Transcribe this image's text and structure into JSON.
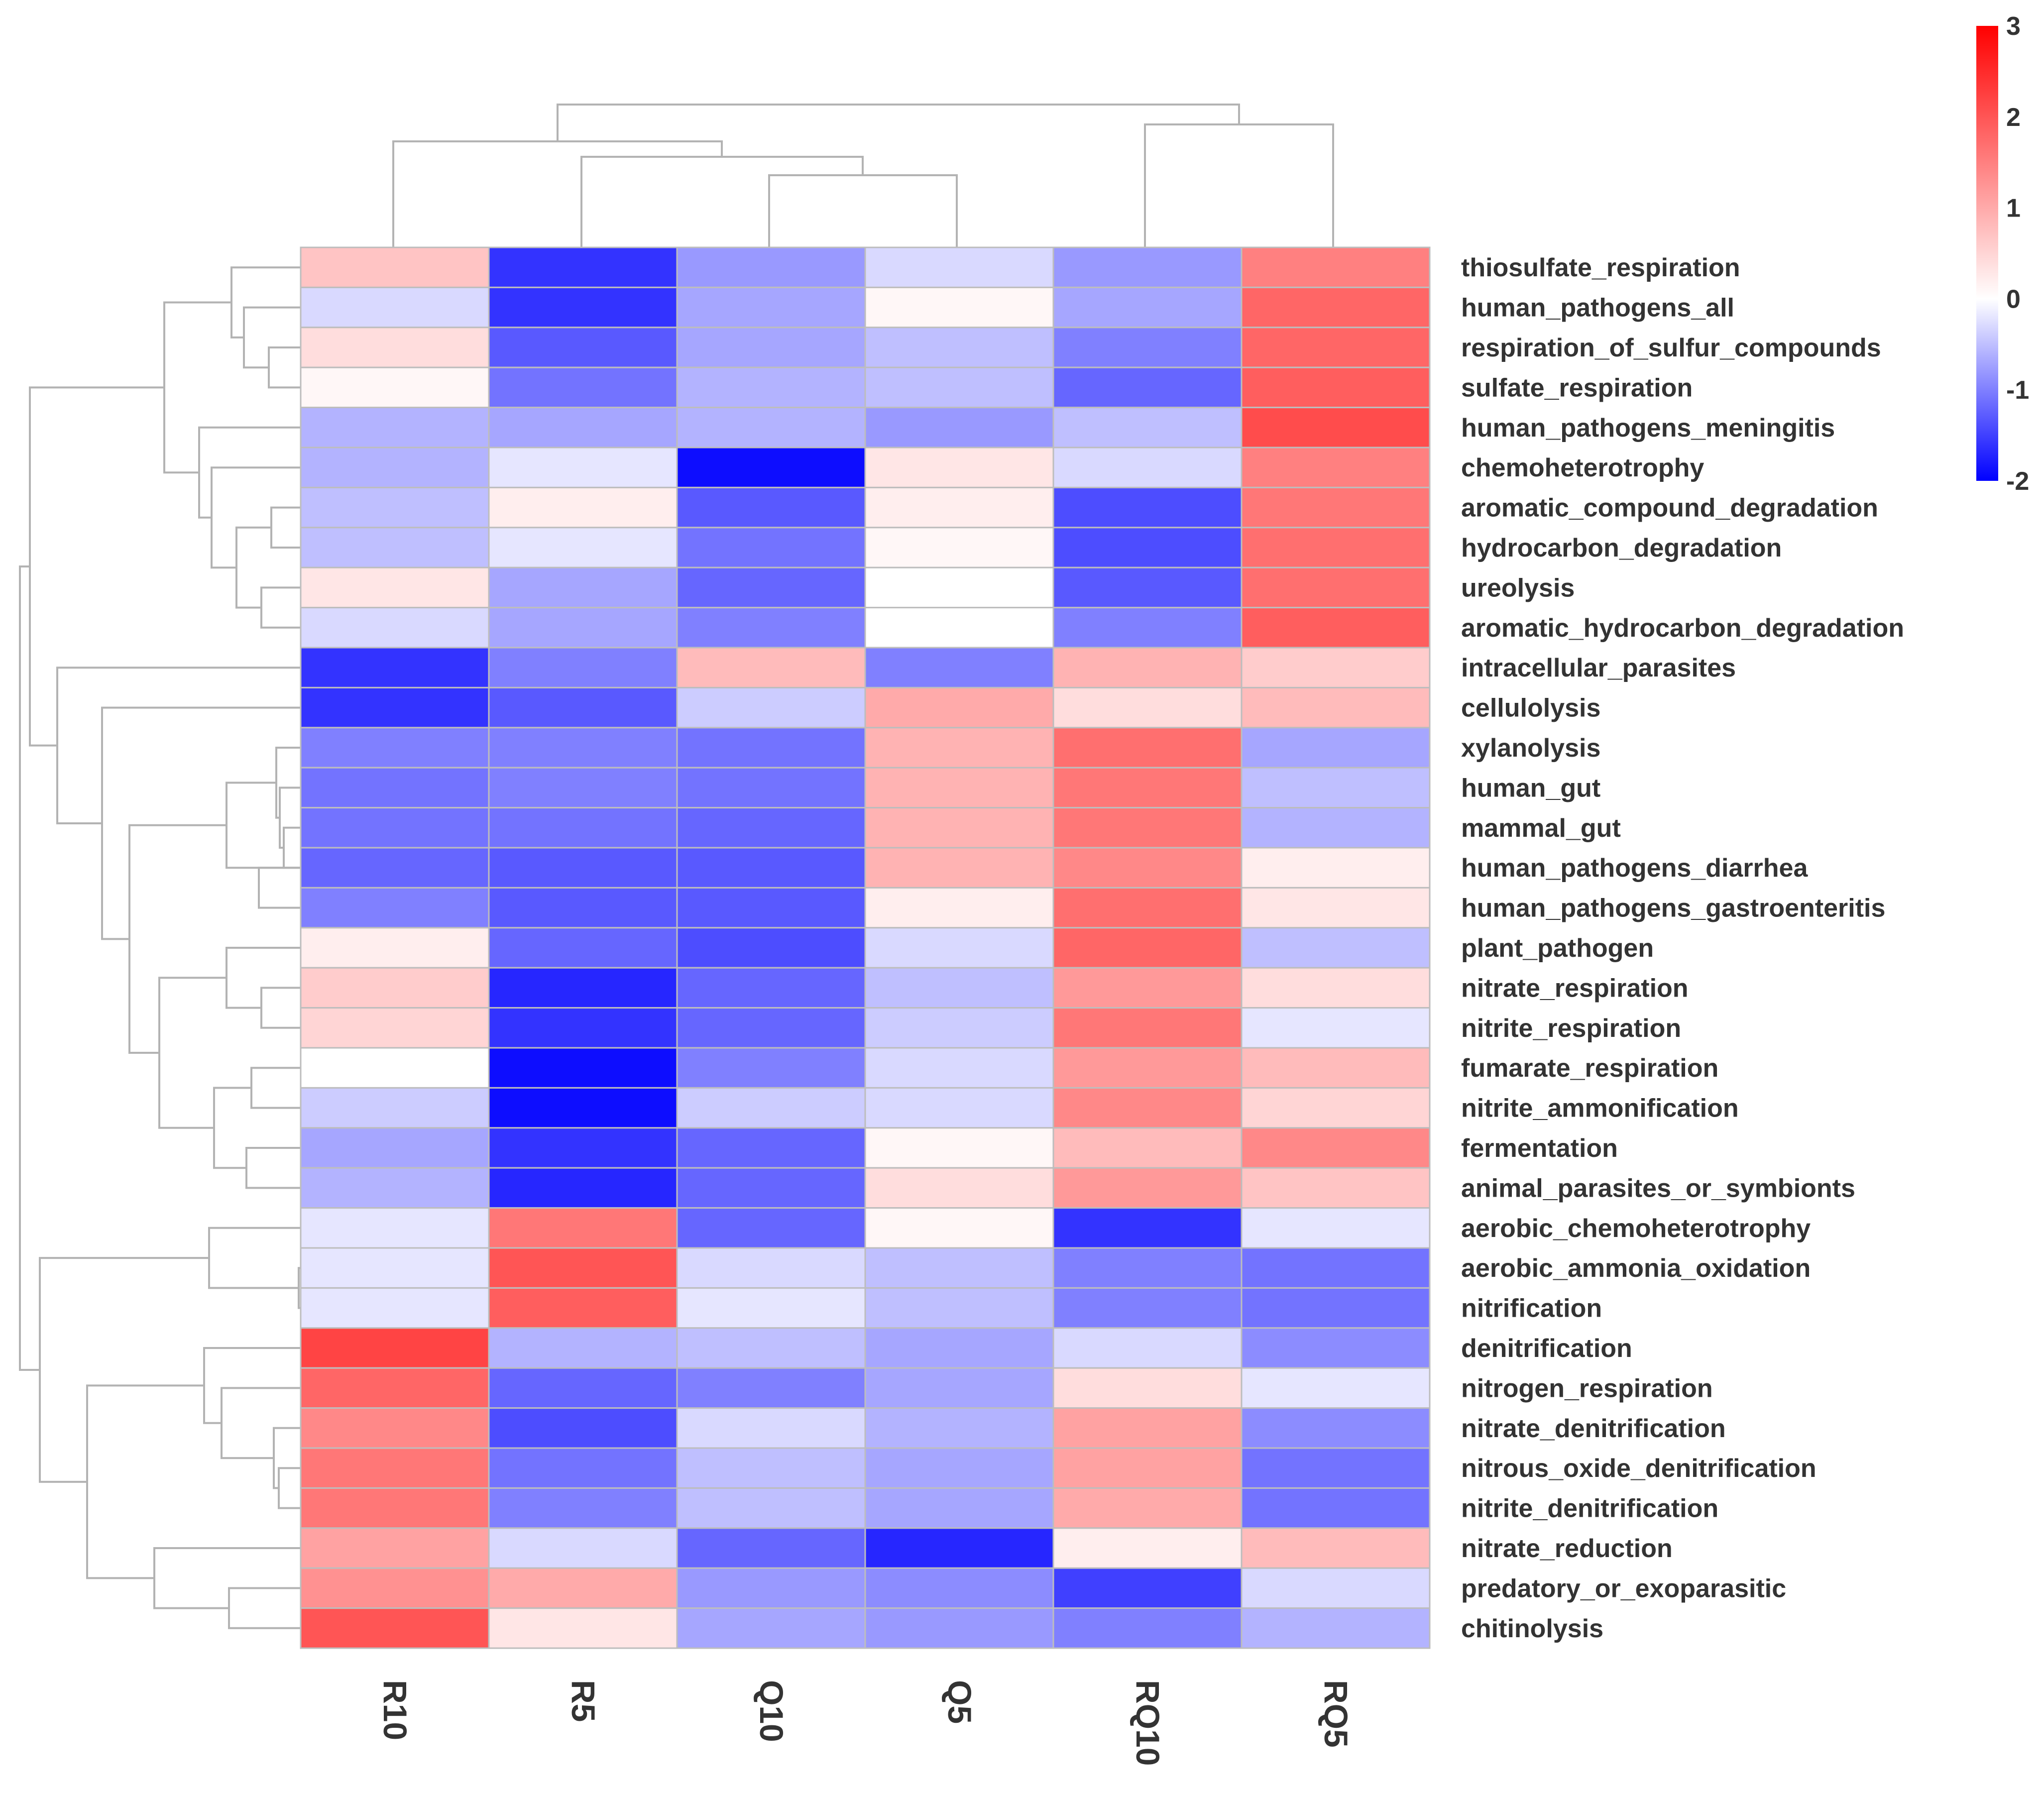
{
  "chart_data": {
    "type": "heatmap",
    "title": "",
    "columns": [
      "R10",
      "R5",
      "Q10",
      "Q5",
      "RQ10",
      "RQ5"
    ],
    "rows": [
      "thiosulfate_respiration",
      "human_pathogens_all",
      "respiration_of_sulfur_compounds",
      "sulfate_respiration",
      "human_pathogens_meningitis",
      "chemoheterotrophy",
      "aromatic_compound_degradation",
      "hydrocarbon_degradation",
      "ureolysis",
      "aromatic_hydrocarbon_degradation",
      "intracellular_parasites",
      "cellulolysis",
      "xylanolysis",
      "human_gut",
      "mammal_gut",
      "human_pathogens_diarrhea",
      "human_pathogens_gastroenteritis",
      "plant_pathogen",
      "nitrate_respiration",
      "nitrite_respiration",
      "fumarate_respiration",
      "nitrite_ammonification",
      "fermentation",
      "animal_parasites_or_symbionts",
      "aerobic_chemoheterotrophy",
      "aerobic_ammonia_oxidation",
      "nitrification",
      "denitrification",
      "nitrogen_respiration",
      "nitrate_denitrification",
      "nitrous_oxide_denitrification",
      "nitrite_denitrification",
      "nitrate_reduction",
      "predatory_or_exoparasitic",
      "chitinolysis"
    ],
    "values": [
      [
        0.7,
        -1.6,
        -0.8,
        -0.3,
        -0.8,
        1.5
      ],
      [
        -0.3,
        -1.6,
        -0.7,
        0.1,
        -0.7,
        1.8
      ],
      [
        0.4,
        -1.3,
        -0.7,
        -0.5,
        -1.0,
        1.8
      ],
      [
        0.1,
        -1.1,
        -0.6,
        -0.5,
        -1.2,
        1.9
      ],
      [
        -0.6,
        -0.7,
        -0.6,
        -0.8,
        -0.5,
        2.1
      ],
      [
        -0.6,
        -0.2,
        -1.9,
        0.3,
        -0.3,
        1.5
      ],
      [
        -0.5,
        0.2,
        -1.3,
        0.2,
        -1.4,
        1.6
      ],
      [
        -0.5,
        -0.2,
        -1.1,
        0.1,
        -1.4,
        1.7
      ],
      [
        0.3,
        -0.7,
        -1.2,
        0.0,
        -1.3,
        1.7
      ],
      [
        -0.3,
        -0.7,
        -1.0,
        0.0,
        -1.0,
        1.9
      ],
      [
        -1.6,
        -1.0,
        0.8,
        -1.0,
        0.9,
        0.6
      ],
      [
        -1.6,
        -1.3,
        -0.4,
        1.0,
        0.4,
        0.8
      ],
      [
        -1.0,
        -1.0,
        -1.1,
        0.9,
        1.7,
        -0.7
      ],
      [
        -1.1,
        -1.0,
        -1.1,
        0.9,
        1.6,
        -0.5
      ],
      [
        -1.1,
        -1.1,
        -1.2,
        0.9,
        1.6,
        -0.6
      ],
      [
        -1.2,
        -1.3,
        -1.3,
        0.9,
        1.4,
        0.2
      ],
      [
        -1.0,
        -1.3,
        -1.3,
        0.2,
        1.7,
        0.3
      ],
      [
        0.2,
        -1.2,
        -1.4,
        -0.3,
        1.8,
        -0.5
      ],
      [
        0.6,
        -1.7,
        -1.2,
        -0.5,
        1.2,
        0.4
      ],
      [
        0.5,
        -1.6,
        -1.2,
        -0.4,
        1.6,
        -0.2
      ],
      [
        0.0,
        -1.9,
        -1.0,
        -0.3,
        1.2,
        0.8
      ],
      [
        -0.4,
        -1.9,
        -0.4,
        -0.3,
        1.4,
        0.5
      ],
      [
        -0.7,
        -1.6,
        -1.2,
        0.1,
        0.8,
        1.4
      ],
      [
        -0.6,
        -1.7,
        -1.2,
        0.4,
        1.2,
        0.7
      ],
      [
        -0.2,
        1.6,
        -1.2,
        0.1,
        -1.6,
        -0.2
      ],
      [
        -0.2,
        2.0,
        -0.3,
        -0.5,
        -1.0,
        -1.1
      ],
      [
        -0.2,
        1.9,
        -0.2,
        -0.5,
        -1.0,
        -1.1
      ],
      [
        2.2,
        -0.6,
        -0.5,
        -0.7,
        -0.3,
        -0.9
      ],
      [
        1.8,
        -1.2,
        -1.0,
        -0.7,
        0.4,
        -0.2
      ],
      [
        1.4,
        -1.4,
        -0.3,
        -0.6,
        1.1,
        -0.9
      ],
      [
        1.6,
        -1.1,
        -0.5,
        -0.7,
        1.1,
        -1.1
      ],
      [
        1.6,
        -1.0,
        -0.5,
        -0.7,
        1.0,
        -1.1
      ],
      [
        1.1,
        -0.3,
        -1.2,
        -1.7,
        0.2,
        0.8
      ],
      [
        1.3,
        1.0,
        -0.8,
        -0.9,
        -1.5,
        -0.3
      ],
      [
        2.0,
        0.3,
        -0.7,
        -0.8,
        -1.0,
        -0.6
      ]
    ],
    "colorbar": {
      "min": -2,
      "max": 3,
      "ticks": [
        "3",
        "2",
        "1",
        "0",
        "-1",
        "-2"
      ],
      "low_color": "#0000ff",
      "mid_color": "#ffffff",
      "high_color": "#ff0000"
    },
    "dendrogram_columns": "hierarchical clustering tree above columns",
    "dendrogram_rows": "hierarchical clustering tree left of rows"
  }
}
